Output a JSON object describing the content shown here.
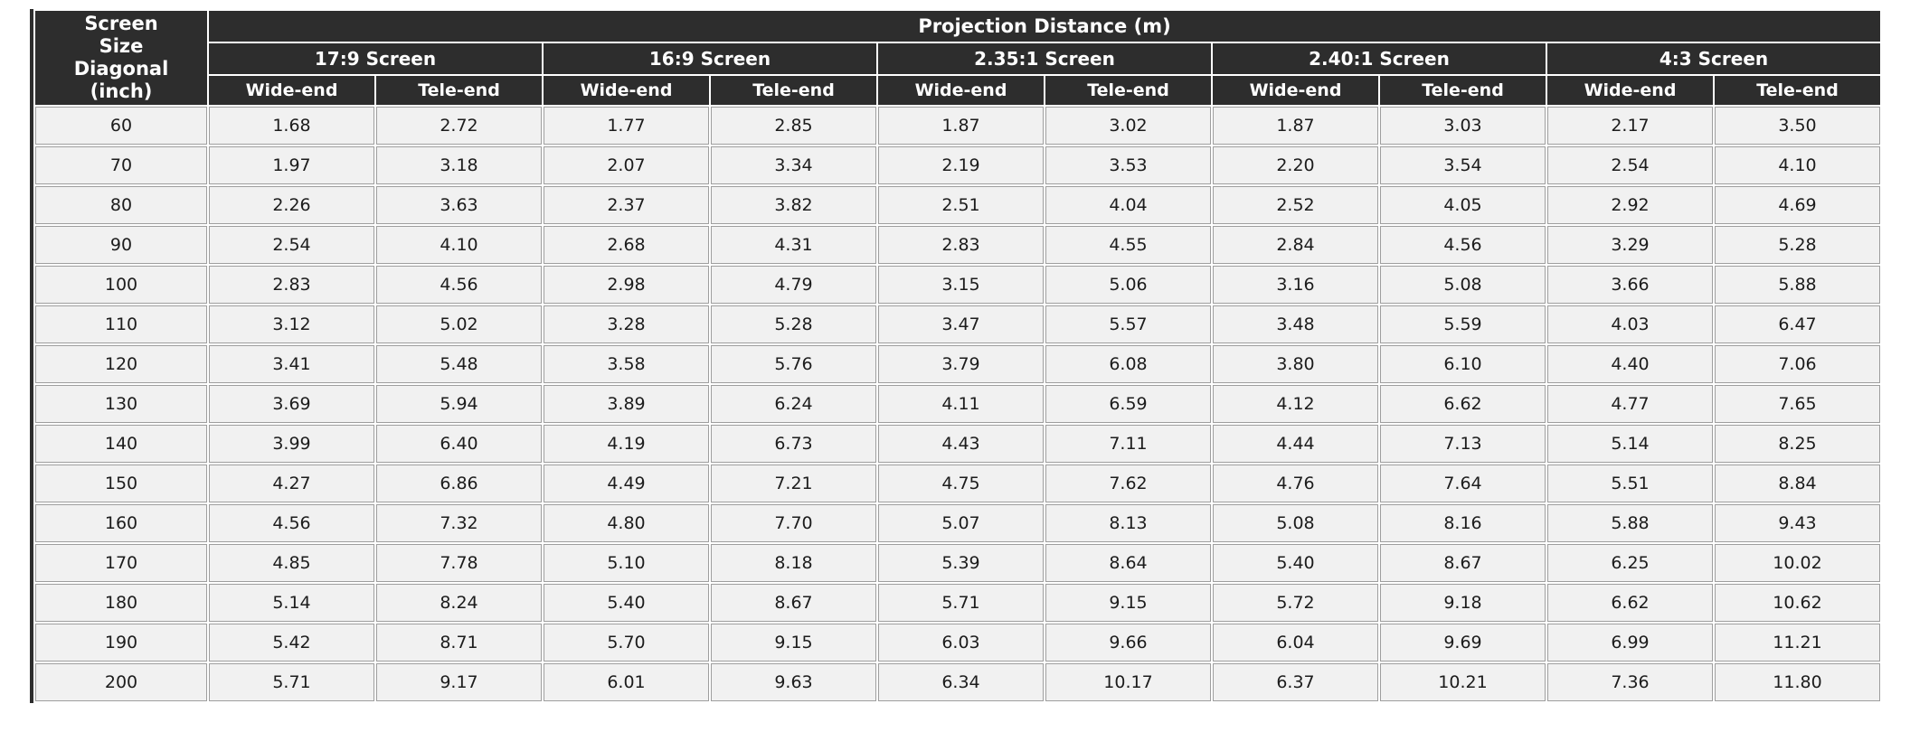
{
  "table": {
    "corner_lines": [
      "Screen",
      "Size",
      "Diagonal",
      "(inch)"
    ],
    "top_header": "Projection Distance (m)",
    "groups": [
      "17:9 Screen",
      "16:9 Screen",
      "2.35:1 Screen",
      "2.40:1 Screen",
      "4:3 Screen"
    ],
    "sub_headers": [
      "Wide-end",
      "Tele-end"
    ],
    "rows": [
      {
        "size": "60",
        "values": [
          "1.68",
          "2.72",
          "1.77",
          "2.85",
          "1.87",
          "3.02",
          "1.87",
          "3.03",
          "2.17",
          "3.50"
        ]
      },
      {
        "size": "70",
        "values": [
          "1.97",
          "3.18",
          "2.07",
          "3.34",
          "2.19",
          "3.53",
          "2.20",
          "3.54",
          "2.54",
          "4.10"
        ]
      },
      {
        "size": "80",
        "values": [
          "2.26",
          "3.63",
          "2.37",
          "3.82",
          "2.51",
          "4.04",
          "2.52",
          "4.05",
          "2.92",
          "4.69"
        ]
      },
      {
        "size": "90",
        "values": [
          "2.54",
          "4.10",
          "2.68",
          "4.31",
          "2.83",
          "4.55",
          "2.84",
          "4.56",
          "3.29",
          "5.28"
        ]
      },
      {
        "size": "100",
        "values": [
          "2.83",
          "4.56",
          "2.98",
          "4.79",
          "3.15",
          "5.06",
          "3.16",
          "5.08",
          "3.66",
          "5.88"
        ]
      },
      {
        "size": "110",
        "values": [
          "3.12",
          "5.02",
          "3.28",
          "5.28",
          "3.47",
          "5.57",
          "3.48",
          "5.59",
          "4.03",
          "6.47"
        ]
      },
      {
        "size": "120",
        "values": [
          "3.41",
          "5.48",
          "3.58",
          "5.76",
          "3.79",
          "6.08",
          "3.80",
          "6.10",
          "4.40",
          "7.06"
        ]
      },
      {
        "size": "130",
        "values": [
          "3.69",
          "5.94",
          "3.89",
          "6.24",
          "4.11",
          "6.59",
          "4.12",
          "6.62",
          "4.77",
          "7.65"
        ]
      },
      {
        "size": "140",
        "values": [
          "3.99",
          "6.40",
          "4.19",
          "6.73",
          "4.43",
          "7.11",
          "4.44",
          "7.13",
          "5.14",
          "8.25"
        ]
      },
      {
        "size": "150",
        "values": [
          "4.27",
          "6.86",
          "4.49",
          "7.21",
          "4.75",
          "7.62",
          "4.76",
          "7.64",
          "5.51",
          "8.84"
        ]
      },
      {
        "size": "160",
        "values": [
          "4.56",
          "7.32",
          "4.80",
          "7.70",
          "5.07",
          "8.13",
          "5.08",
          "8.16",
          "5.88",
          "9.43"
        ]
      },
      {
        "size": "170",
        "values": [
          "4.85",
          "7.78",
          "5.10",
          "8.18",
          "5.39",
          "8.64",
          "5.40",
          "8.67",
          "6.25",
          "10.02"
        ]
      },
      {
        "size": "180",
        "values": [
          "5.14",
          "8.24",
          "5.40",
          "8.67",
          "5.71",
          "9.15",
          "5.72",
          "9.18",
          "6.62",
          "10.62"
        ]
      },
      {
        "size": "190",
        "values": [
          "5.42",
          "8.71",
          "5.70",
          "9.15",
          "6.03",
          "9.66",
          "6.04",
          "9.69",
          "6.99",
          "11.21"
        ]
      },
      {
        "size": "200",
        "values": [
          "5.71",
          "9.17",
          "6.01",
          "9.63",
          "6.34",
          "10.17",
          "6.37",
          "10.21",
          "7.36",
          "11.80"
        ]
      }
    ],
    "colors": {
      "header_bg": "#2d2d2d",
      "header_text": "#ffffff",
      "cell_bg": "#f1f1f1",
      "cell_border": "#9e9e9e",
      "cell_text": "#1c1c1c"
    }
  }
}
